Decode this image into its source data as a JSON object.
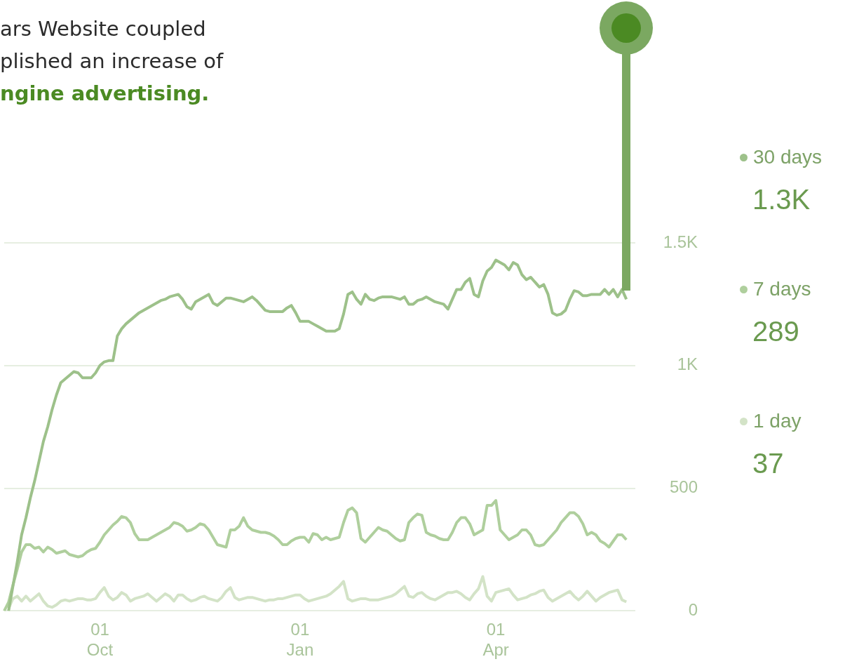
{
  "chart_data": {
    "type": "line",
    "title": "ars Website coupled\nplished an increase of",
    "subtitle": "ngine advertising.",
    "categories": [
      null,
      null,
      null,
      null,
      null,
      null,
      null,
      null,
      null,
      null,
      null,
      null,
      null,
      null,
      null,
      null,
      null,
      null,
      null,
      null,
      null,
      null,
      "01\nOct",
      null,
      null,
      null,
      null,
      null,
      null,
      null,
      null,
      null,
      null,
      null,
      null,
      null,
      null,
      null,
      null,
      null,
      null,
      null,
      null,
      null,
      null,
      null,
      null,
      null,
      null,
      null,
      null,
      null,
      null,
      null,
      null,
      null,
      null,
      null,
      null,
      null,
      null,
      null,
      null,
      null,
      null,
      null,
      null,
      null,
      "01\nJan",
      null,
      null,
      null,
      null,
      null,
      null,
      null,
      null,
      null,
      null,
      null,
      null,
      null,
      null,
      null,
      null,
      null,
      null,
      null,
      null,
      null,
      null,
      null,
      null,
      null,
      null,
      null,
      null,
      null,
      null,
      null,
      null,
      null,
      null,
      null,
      null,
      null,
      null,
      null,
      null,
      null,
      null,
      null,
      null,
      "01\nApr",
      null,
      null,
      null,
      null,
      null,
      null,
      null,
      null,
      null,
      null,
      null,
      null,
      null,
      null,
      null,
      null,
      null,
      null,
      null,
      null,
      null,
      null,
      null,
      null,
      null,
      null,
      null,
      null,
      null,
      null,
      null,
      null
    ],
    "ylim": [
      0,
      1500
    ],
    "yticks": [
      0,
      500,
      {
        "value": 1000,
        "label": "1K"
      },
      {
        "value": 1500,
        "label": "1.5K"
      }
    ],
    "grid": "y",
    "legend": "right",
    "annotations": [
      "1.3K",
      "289",
      "37"
    ],
    "series": [
      {
        "name": "30 days",
        "color": "#9dc18a",
        "values": [
          null,
          0,
          100,
          200,
          310,
          380,
          460,
          530,
          610,
          690,
          750,
          820,
          880,
          930,
          945,
          960,
          975,
          970,
          950,
          950,
          950,
          970,
          1000,
          1015,
          1020,
          1020,
          1120,
          1150,
          1170,
          1185,
          1200,
          1215,
          1225,
          1235,
          1245,
          1255,
          1265,
          1270,
          1280,
          1285,
          1290,
          1270,
          1240,
          1230,
          1260,
          1270,
          1280,
          1290,
          1255,
          1245,
          1260,
          1275,
          1275,
          1270,
          1265,
          1260,
          1270,
          1280,
          1265,
          1245,
          1225,
          1220,
          1220,
          1220,
          1220,
          1235,
          1245,
          1215,
          1180,
          1180,
          1180,
          1170,
          1160,
          1150,
          1140,
          1140,
          1140,
          1150,
          1210,
          1290,
          1300,
          1270,
          1250,
          1290,
          1270,
          1265,
          1275,
          1280,
          1280,
          1280,
          1275,
          1270,
          1280,
          1250,
          1250,
          1265,
          1270,
          1280,
          1270,
          1260,
          1255,
          1250,
          1230,
          1270,
          1310,
          1310,
          1340,
          1355,
          1290,
          1280,
          1345,
          1385,
          1400,
          1430,
          1420,
          1410,
          1390,
          1420,
          1410,
          1370,
          1350,
          1360,
          1340,
          1320,
          1330,
          1290,
          1215,
          1205,
          1210,
          1225,
          1270,
          1305,
          1300,
          1285,
          1285,
          1290,
          1290,
          1290,
          1310,
          1290,
          1310,
          1280,
          1310,
          1270,
          null,
          null
        ]
      },
      {
        "name": "7 days",
        "color": "#afcf9d",
        "values": [
          0,
          35,
          105,
          170,
          240,
          270,
          270,
          255,
          260,
          240,
          260,
          250,
          235,
          240,
          245,
          230,
          225,
          220,
          225,
          240,
          250,
          255,
          280,
          310,
          330,
          350,
          365,
          385,
          380,
          360,
          315,
          290,
          290,
          290,
          300,
          310,
          320,
          330,
          340,
          360,
          355,
          345,
          325,
          330,
          340,
          355,
          350,
          330,
          300,
          270,
          265,
          260,
          330,
          330,
          345,
          380,
          345,
          330,
          325,
          320,
          320,
          315,
          305,
          290,
          270,
          270,
          285,
          295,
          300,
          300,
          280,
          315,
          310,
          290,
          300,
          290,
          295,
          300,
          360,
          410,
          420,
          400,
          295,
          280,
          300,
          320,
          340,
          330,
          325,
          310,
          295,
          285,
          290,
          360,
          380,
          395,
          390,
          320,
          310,
          305,
          295,
          290,
          290,
          320,
          360,
          380,
          380,
          355,
          310,
          320,
          330,
          430,
          430,
          450,
          330,
          310,
          290,
          300,
          310,
          330,
          330,
          310,
          270,
          265,
          270,
          290,
          310,
          330,
          360,
          380,
          400,
          400,
          385,
          355,
          310,
          320,
          310,
          285,
          275,
          260,
          285,
          310,
          310,
          290,
          null,
          null
        ]
      },
      {
        "name": "1 day",
        "color": "#d3e3c7",
        "values": [
          null,
          10,
          50,
          60,
          40,
          60,
          40,
          55,
          70,
          40,
          20,
          15,
          25,
          40,
          45,
          40,
          45,
          50,
          50,
          45,
          45,
          50,
          75,
          95,
          60,
          45,
          55,
          75,
          65,
          40,
          50,
          55,
          60,
          70,
          55,
          40,
          55,
          70,
          60,
          40,
          65,
          65,
          50,
          40,
          45,
          55,
          60,
          50,
          45,
          40,
          55,
          80,
          95,
          55,
          45,
          50,
          55,
          55,
          50,
          45,
          40,
          45,
          45,
          50,
          50,
          55,
          60,
          65,
          65,
          50,
          40,
          45,
          50,
          55,
          60,
          70,
          85,
          100,
          120,
          50,
          40,
          45,
          50,
          50,
          45,
          45,
          45,
          50,
          55,
          60,
          70,
          85,
          100,
          60,
          55,
          70,
          75,
          60,
          50,
          45,
          55,
          65,
          75,
          75,
          80,
          70,
          55,
          45,
          70,
          90,
          140,
          60,
          40,
          75,
          80,
          85,
          90,
          65,
          45,
          50,
          55,
          65,
          70,
          80,
          85,
          55,
          40,
          50,
          60,
          70,
          80,
          60,
          45,
          60,
          80,
          60,
          40,
          55,
          65,
          75,
          80,
          85,
          45,
          37,
          null,
          null
        ]
      }
    ]
  }
}
